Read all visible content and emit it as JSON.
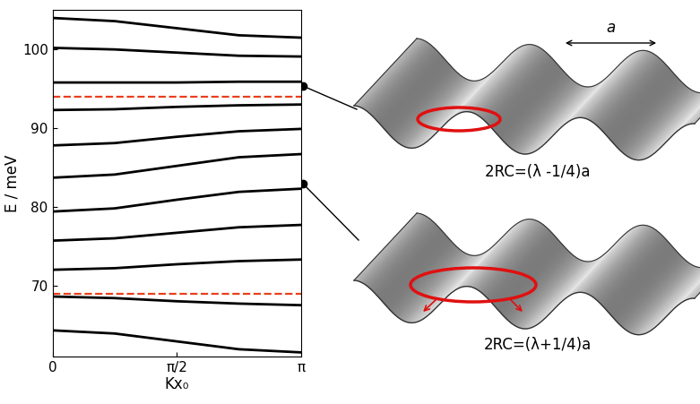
{
  "chart_data": {
    "type": "line",
    "x_label": "Kx₀",
    "y_label": "E / meV",
    "x": [
      0,
      0.785,
      1.571,
      2.356,
      3.142
    ],
    "xlim": [
      0,
      3.142
    ],
    "xticks": [
      0,
      {
        "value": 1.571,
        "label": "π/2"
      },
      {
        "value": 3.142,
        "label": "π"
      }
    ],
    "ylim": [
      61,
      105
    ],
    "yticks": [
      70,
      80,
      90,
      100
    ],
    "series": [
      {
        "color": "#000000",
        "line_style": "solid",
        "values": [
          64.3,
          63.9,
          62.9,
          61.9,
          61.5
        ]
      },
      {
        "color": "#000000",
        "line_style": "solid",
        "values": [
          68.6,
          68.4,
          68.0,
          67.7,
          67.5
        ]
      },
      {
        "color": "#000000",
        "line_style": "solid",
        "values": [
          72.0,
          72.2,
          72.7,
          73.1,
          73.3
        ]
      },
      {
        "color": "#000000",
        "line_style": "solid",
        "values": [
          75.7,
          76.0,
          76.7,
          77.4,
          77.7
        ]
      },
      {
        "color": "#000000",
        "line_style": "solid",
        "values": [
          79.4,
          79.8,
          80.9,
          81.9,
          82.3
        ]
      },
      {
        "color": "#000000",
        "line_style": "solid",
        "values": [
          83.7,
          84.1,
          85.2,
          86.3,
          86.7
        ]
      },
      {
        "color": "#000000",
        "line_style": "solid",
        "values": [
          87.8,
          88.1,
          88.9,
          89.6,
          89.9
        ]
      },
      {
        "color": "#000000",
        "line_style": "solid",
        "values": [
          92.3,
          92.4,
          92.7,
          92.9,
          93.0
        ]
      },
      {
        "color": "#000000",
        "line_style": "solid",
        "values": [
          95.8,
          95.8,
          95.8,
          95.9,
          95.9
        ]
      },
      {
        "color": "#000000",
        "line_style": "solid",
        "values": [
          100.2,
          100.0,
          99.6,
          99.2,
          99.1
        ]
      },
      {
        "color": "#000000",
        "line_style": "solid",
        "values": [
          104.0,
          103.6,
          102.7,
          101.8,
          101.5
        ]
      },
      {
        "color": "#e8401c",
        "line_style": "dashed",
        "values": [
          94.0,
          94.0,
          94.0,
          94.0,
          94.0
        ]
      },
      {
        "color": "#e8401c",
        "line_style": "dashed",
        "values": [
          69.0,
          69.0,
          69.0,
          69.0,
          69.0
        ]
      }
    ]
  },
  "diagram": {
    "spacing_label": "a",
    "annotations": [
      "2RC=(λ -1/4)a",
      "2RC=(λ+1/4)a"
    ]
  }
}
